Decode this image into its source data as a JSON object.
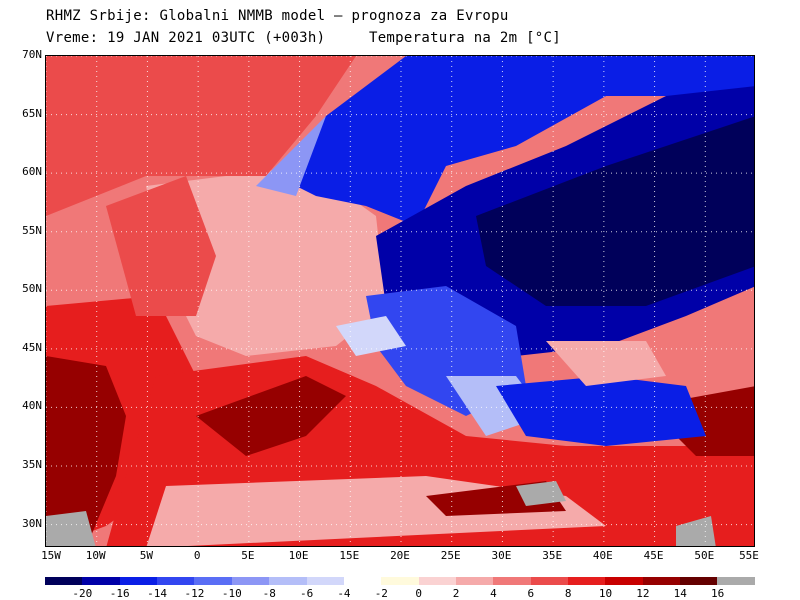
{
  "header": {
    "line1": "RHMZ Srbije: Globalni NMMB model — prognoza za Evropu",
    "line2": "Vreme: 19 JAN 2021 03UTC (+003h)     Temperatura na 2m [°C]"
  },
  "map": {
    "lat_range": [
      28,
      70
    ],
    "lon_range": [
      -15,
      55
    ],
    "lat_labels": [
      "30N",
      "35N",
      "40N",
      "45N",
      "50N",
      "55N",
      "60N",
      "65N",
      "70N"
    ],
    "lat_values": [
      30,
      35,
      40,
      45,
      50,
      55,
      60,
      65,
      70
    ],
    "lon_labels": [
      "15W",
      "10W",
      "5W",
      "0",
      "5E",
      "10E",
      "15E",
      "20E",
      "25E",
      "30E",
      "35E",
      "40E",
      "45E",
      "50E",
      "55E"
    ],
    "lon_values": [
      -15,
      -10,
      -5,
      0,
      5,
      10,
      15,
      20,
      25,
      30,
      35,
      40,
      45,
      50,
      55
    ],
    "grid": "dotted"
  },
  "colorbar": {
    "colors": [
      "#00005a",
      "#0000a8",
      "#0a1ee6",
      "#3246f0",
      "#5a6ef5",
      "#8c96f5",
      "#b4bef8",
      "#d2d7fa",
      "#ffffff",
      "#fffadc",
      "#fad2d2",
      "#f5aaaa",
      "#f07878",
      "#eb4b4b",
      "#e61e1e",
      "#c80000",
      "#960000",
      "#640000",
      "#aaaaaa"
    ],
    "labels": [
      "-20",
      "-16",
      "-14",
      "-12",
      "-10",
      "-8",
      "-6",
      "-4",
      "-2",
      "0",
      "2",
      "4",
      "6",
      "8",
      "10",
      "12",
      "14",
      "16"
    ]
  }
}
